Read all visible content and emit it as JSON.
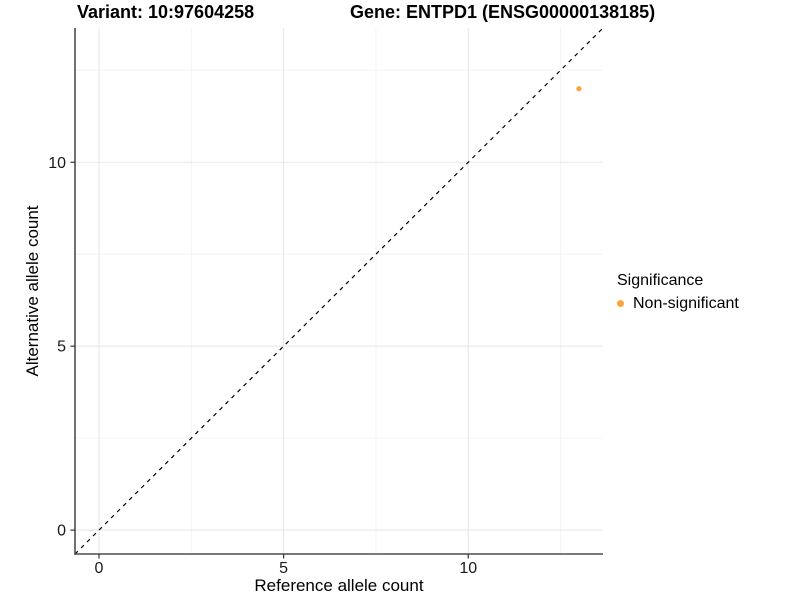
{
  "chart_data": {
    "type": "scatter",
    "titles": {
      "variant": "Variant: 10:97604258",
      "gene": "Gene: ENTPD1 (ENSG00000138185)"
    },
    "xlabel": "Reference allele count",
    "ylabel": "Alternative allele count",
    "xlim": [
      -0.65,
      13.65
    ],
    "ylim": [
      -0.65,
      13.65
    ],
    "x_ticks": [
      0,
      5,
      10
    ],
    "y_ticks": [
      0,
      5,
      10
    ],
    "x_minor_ticks": [
      2.5,
      7.5,
      12.5
    ],
    "y_minor_ticks": [
      2.5,
      7.5,
      12.5
    ],
    "grid": "major+minor",
    "reference_line": {
      "kind": "identity y=x",
      "style": "dashed",
      "color": "#000000"
    },
    "series": [
      {
        "name": "Non-significant",
        "color": "#FAA43A",
        "point_radius_px": 2.6,
        "points": [
          {
            "x": 13,
            "y": 12
          }
        ]
      }
    ],
    "legend": {
      "title": "Significance",
      "position": "right",
      "entries": [
        {
          "label": "Non-significant",
          "color": "#FAA43A"
        }
      ]
    },
    "colors": {
      "axis_line": "#4D4D4D",
      "tick_mark": "#333333",
      "grid_major": "#E8E8E8",
      "grid_minor": "#F4F4F4",
      "background": "#FFFFFF",
      "text": "#000000"
    }
  }
}
